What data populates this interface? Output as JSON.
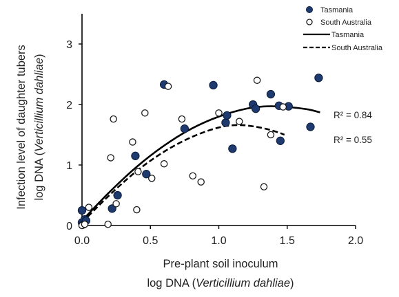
{
  "chart_data": {
    "type": "scatter",
    "xlabel_line1": "Pre-plant soil inoculum",
    "xlabel_line2_prefix": "log DNA (",
    "xlabel_line2_italic": "Verticillium dahliae",
    "xlabel_line2_suffix": ")",
    "ylabel_line1": "Infection level of daughter tubers",
    "ylabel_line2_prefix": "log DNA (",
    "ylabel_line2_italic": "Verticillium dahliae",
    "ylabel_line2_suffix": ")",
    "xlim": [
      0,
      2.0
    ],
    "ylim": [
      0,
      3.5
    ],
    "xticks": [
      "0.0",
      "0.5",
      "1.0",
      "1.5",
      "2.0"
    ],
    "yticks": [
      "0",
      "1",
      "2",
      "3"
    ],
    "legend": {
      "position": "top-right",
      "entries": [
        "Tasmania",
        "South Australia",
        "Tasmania",
        "South Australia"
      ]
    },
    "annotations": [
      "R² = 0.84",
      "R² = 0.55"
    ],
    "series": [
      {
        "name": "Tasmania",
        "marker": "filled-circle",
        "color": "#1f3a6e",
        "points": [
          [
            0.0,
            0.25
          ],
          [
            0.0,
            0.05
          ],
          [
            0.01,
            0.02
          ],
          [
            0.02,
            0.1
          ],
          [
            0.03,
            0.08
          ],
          [
            0.22,
            0.28
          ],
          [
            0.26,
            0.5
          ],
          [
            0.39,
            1.15
          ],
          [
            0.47,
            0.85
          ],
          [
            0.6,
            2.33
          ],
          [
            0.75,
            1.6
          ],
          [
            0.96,
            2.32
          ],
          [
            1.05,
            1.7
          ],
          [
            1.06,
            1.82
          ],
          [
            1.1,
            1.27
          ],
          [
            1.25,
            2.0
          ],
          [
            1.27,
            1.93
          ],
          [
            1.38,
            2.17
          ],
          [
            1.44,
            1.98
          ],
          [
            1.45,
            1.4
          ],
          [
            1.51,
            1.97
          ],
          [
            1.67,
            1.63
          ],
          [
            1.73,
            2.44
          ]
        ]
      },
      {
        "name": "South Australia",
        "marker": "open-circle",
        "color": "#1a1a1a",
        "points": [
          [
            0.0,
            0.0
          ],
          [
            0.02,
            0.02
          ],
          [
            0.05,
            0.3
          ],
          [
            0.19,
            0.02
          ],
          [
            0.21,
            1.12
          ],
          [
            0.23,
            1.76
          ],
          [
            0.25,
            0.36
          ],
          [
            0.37,
            1.38
          ],
          [
            0.4,
            0.26
          ],
          [
            0.41,
            0.89
          ],
          [
            0.46,
            1.86
          ],
          [
            0.51,
            0.78
          ],
          [
            0.6,
            1.02
          ],
          [
            0.63,
            2.3
          ],
          [
            0.73,
            1.76
          ],
          [
            0.81,
            0.82
          ],
          [
            0.87,
            0.72
          ],
          [
            1.0,
            1.86
          ],
          [
            1.15,
            1.72
          ],
          [
            1.28,
            2.4
          ],
          [
            1.33,
            0.64
          ],
          [
            1.38,
            1.5
          ],
          [
            1.47,
            1.96
          ]
        ]
      },
      {
        "name": "Tasmania",
        "type": "trendline",
        "style": "solid",
        "color": "#000000",
        "points": [
          [
            0.0,
            0.08
          ],
          [
            0.2,
            0.55
          ],
          [
            0.4,
            0.97
          ],
          [
            0.6,
            1.32
          ],
          [
            0.8,
            1.6
          ],
          [
            1.0,
            1.8
          ],
          [
            1.2,
            1.93
          ],
          [
            1.35,
            1.97
          ],
          [
            1.5,
            1.96
          ],
          [
            1.65,
            1.92
          ],
          [
            1.74,
            1.87
          ]
        ]
      },
      {
        "name": "South Australia",
        "type": "trendline",
        "style": "dashed",
        "color": "#000000",
        "points": [
          [
            0.0,
            0.05
          ],
          [
            0.2,
            0.5
          ],
          [
            0.4,
            0.9
          ],
          [
            0.6,
            1.22
          ],
          [
            0.8,
            1.46
          ],
          [
            1.0,
            1.62
          ],
          [
            1.15,
            1.66
          ],
          [
            1.3,
            1.62
          ],
          [
            1.42,
            1.55
          ],
          [
            1.48,
            1.5
          ]
        ]
      }
    ]
  }
}
